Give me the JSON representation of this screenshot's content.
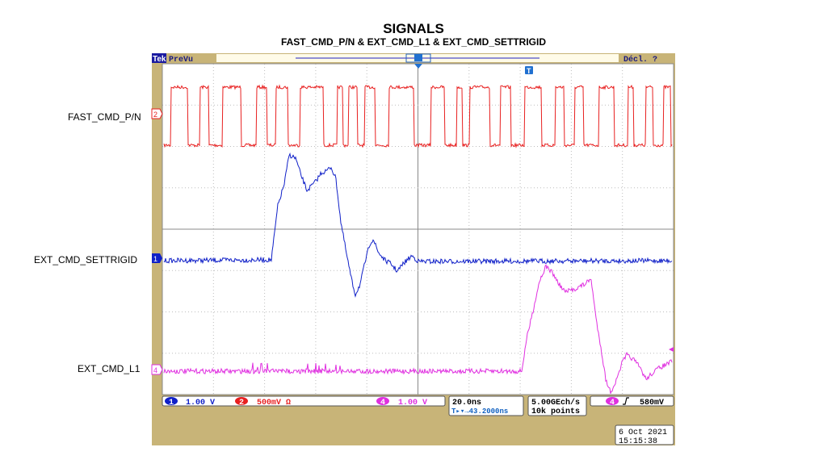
{
  "slide": {
    "title": "SIGNALS",
    "subtitle": "FAST_CMD_P/N & EXT_CMD_L1 & EXT_CMD_SETTRIGID"
  },
  "labels": {
    "fast": "FAST_CMD_P/N",
    "settrigid": "EXT_CMD_SETTRIGID",
    "l1": "EXT_CMD_L1"
  },
  "scope": {
    "brand": "Tek",
    "mode": "PreVu",
    "trigger_status": "Décl. ?",
    "trigger_marker": "T",
    "channels": [
      {
        "num": "1",
        "scale": "1.00 V",
        "color": "#1020c8"
      },
      {
        "num": "2",
        "scale": "500mV Ω",
        "color": "#e82020"
      },
      {
        "num": "4",
        "scale": "1.00 V",
        "color": "#e030e0"
      }
    ],
    "timebase": "20.0ns",
    "trigger_delay": "T▸▾→43.2000ns",
    "sample_rate": "5.00GEch/s",
    "record_length": "10k points",
    "trigger_source": "4",
    "trigger_slope_icon": "rising-edge-icon",
    "trigger_level": "580mV",
    "date": "6 Oct  2021",
    "time": "15:15:38",
    "colors": {
      "bezel": "#c8b478",
      "screen": "#ffffff",
      "grid": "#a0a0a0",
      "text_blue": "#1020c8"
    }
  }
}
